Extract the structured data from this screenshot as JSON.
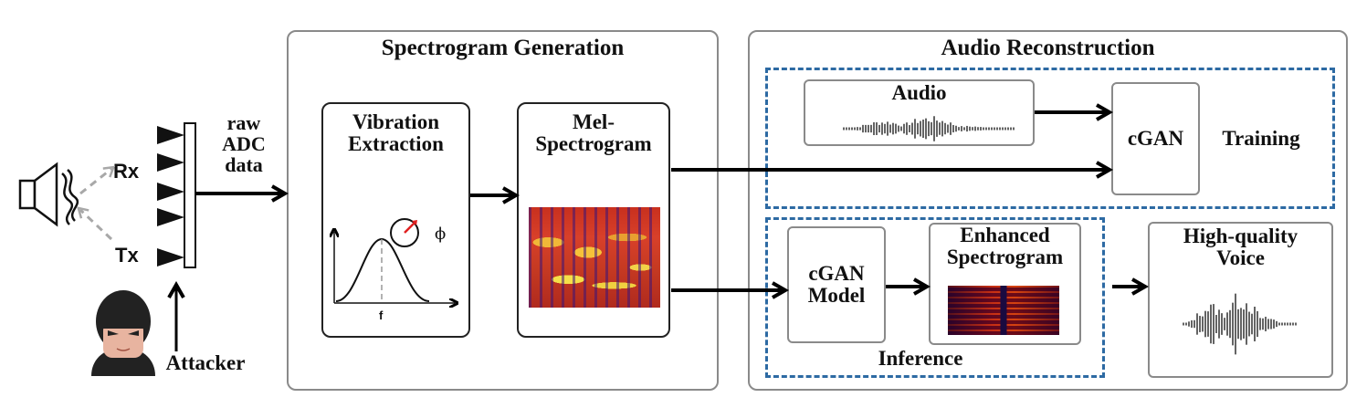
{
  "left": {
    "rx_label": "Rx",
    "tx_label": "Tx",
    "raw_adc_label": "raw\nADC\ndata",
    "attacker_label": "Attacker"
  },
  "spectrogram_generation": {
    "title": "Spectrogram Generation",
    "vibration_label": "Vibration\nExtraction",
    "phi_label": "ϕ",
    "f_label": "f",
    "mel_label": "Mel-\nSpectrogram"
  },
  "audio_reconstruction": {
    "title": "Audio Reconstruction",
    "audio_label": "Audio",
    "cgan_label": "cGAN",
    "training_label": "Training",
    "cgan_model_label": "cGAN\nModel",
    "enhanced_label": "Enhanced\nSpectrogram",
    "inference_label": "Inference",
    "hq_voice_label": "High-quality\nVoice"
  },
  "colors": {
    "panel_border": "#8a8a8a",
    "dashed_border": "#2d6aa3",
    "arrow": "#000000",
    "gray_arrow": "#a8a8a8"
  }
}
